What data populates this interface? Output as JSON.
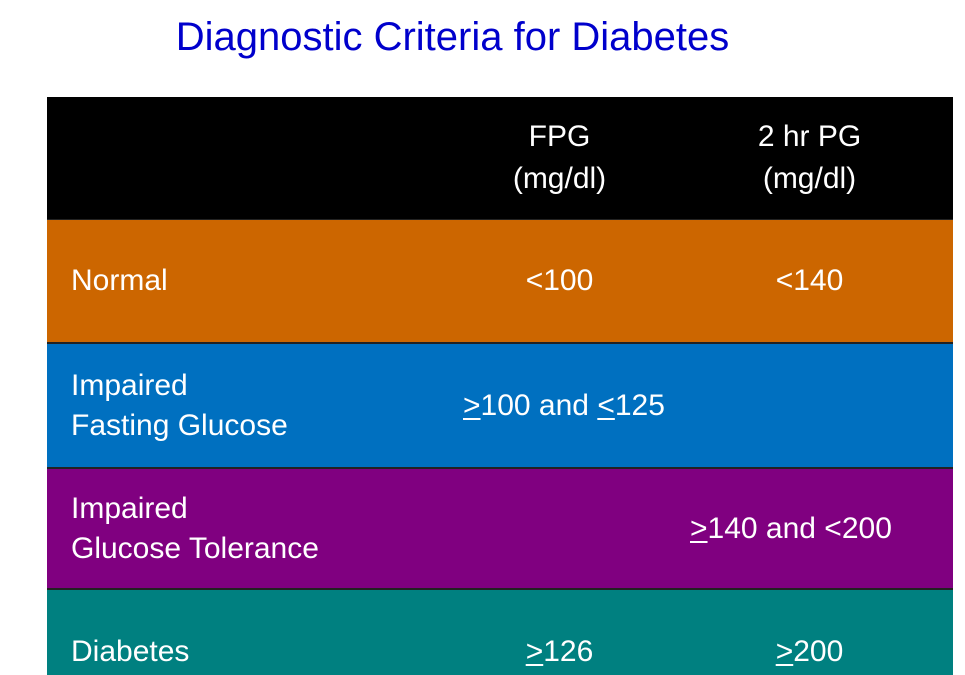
{
  "title": "Diagnostic Criteria for Diabetes",
  "table": {
    "header": {
      "label": "",
      "fpg": [
        "FPG",
        "(mg/dl)"
      ],
      "pg2hr": [
        "2 hr PG",
        "(mg/dl)"
      ]
    },
    "rows": [
      {
        "label": [
          "Normal"
        ],
        "fpg": {
          "symbol": "",
          "text": "<100"
        },
        "pg2hr": {
          "symbol": "",
          "text": "<140"
        },
        "color": "#cc6600"
      },
      {
        "label": [
          "Impaired",
          "Fasting Glucose"
        ],
        "combined": {
          "sym1": ">",
          "mid": "100 and ",
          "sym2": "<",
          "end": "125"
        },
        "color": "#0070c0"
      },
      {
        "label": [
          "Impaired",
          "Glucose Tolerance"
        ],
        "combined": {
          "sym1": ">",
          "mid": "140 and <200"
        },
        "color": "#800080"
      },
      {
        "label": [
          "Diabetes"
        ],
        "fpg": {
          "symbol": ">",
          "text": "126"
        },
        "pg2hr": {
          "symbol": ">",
          "text": "200"
        },
        "color": "#008080"
      }
    ]
  },
  "colors": {
    "title": "#0000cc",
    "header_bg": "#000000",
    "text": "#ffffff"
  }
}
